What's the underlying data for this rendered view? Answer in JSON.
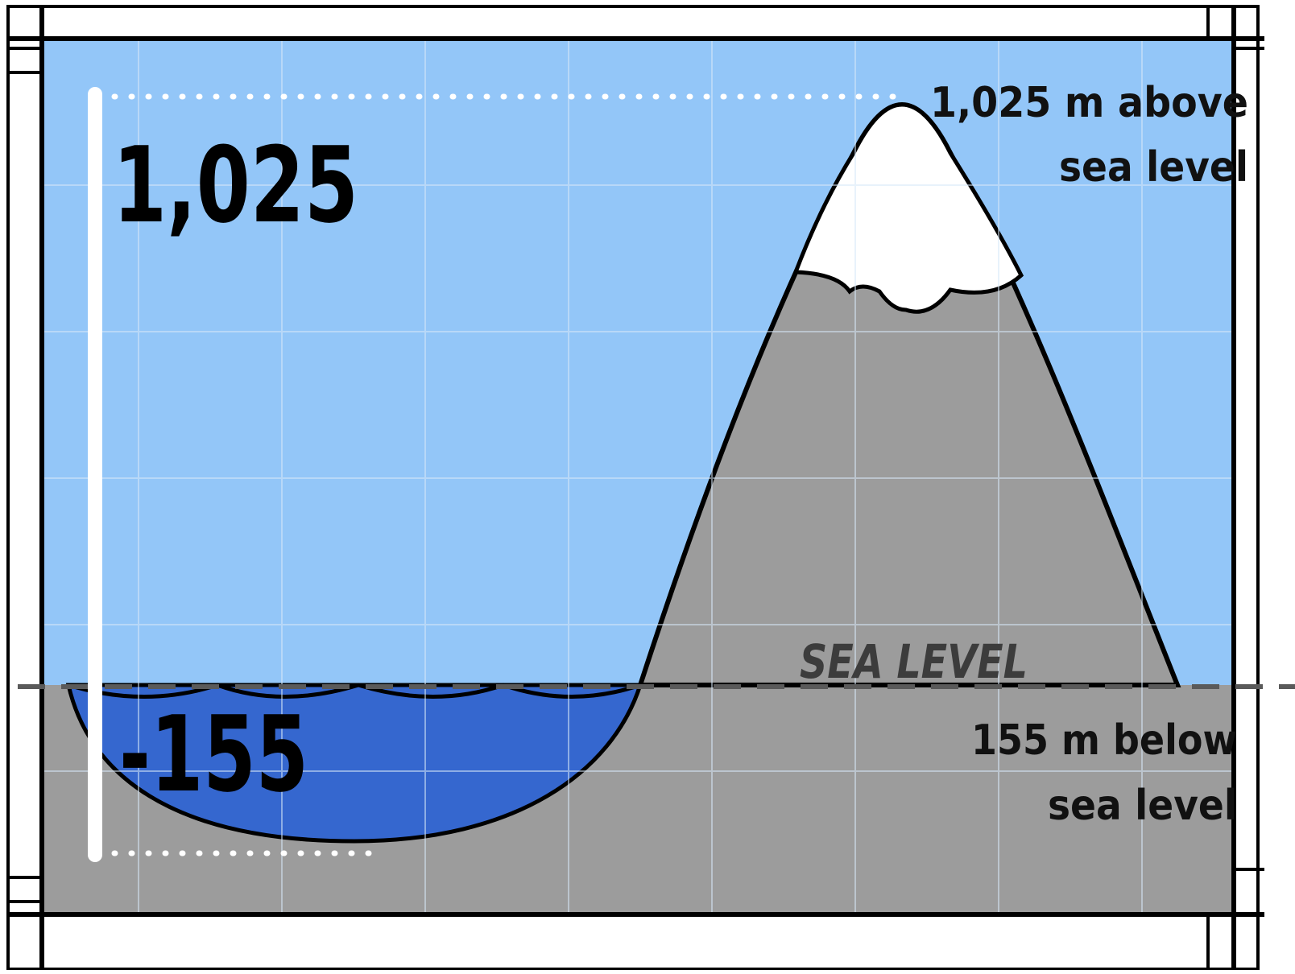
{
  "diagram": {
    "height_span_label": "1,025",
    "depth_label": "-155",
    "above_label_line1": "1,025 m above",
    "above_label_line2": "sea level",
    "below_label_line1": "155 m below",
    "below_label_line2": "sea level",
    "sea_level_label": "SEA LEVEL"
  },
  "colors": {
    "sky": "#93c6f8",
    "ground": "#9c9c9c",
    "water": "#3567cf",
    "snow": "#ffffff",
    "outline": "#000000",
    "grid": "#d7e8f8",
    "sea_level_dash": "#5a5a5a"
  }
}
